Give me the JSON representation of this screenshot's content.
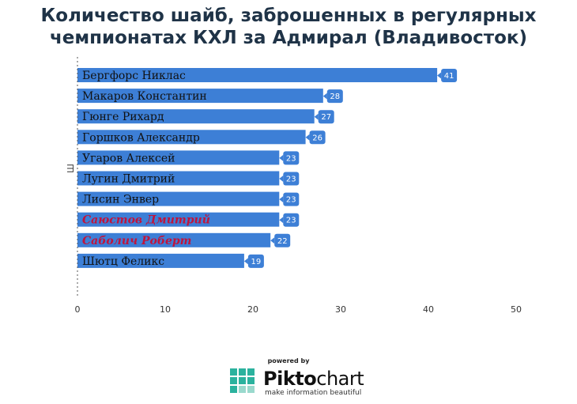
{
  "title_lines": [
    "Количество шайб, заброшенных в регулярных",
    "чемпионатах КХЛ за Адмирал (Владивосток)"
  ],
  "chart_data": {
    "type": "bar",
    "orientation": "horizontal",
    "title": "Количество шайб, заброшенных в регулярных чемпионатах КХЛ за Адмирал (Владивосток)",
    "ylabel": "Ш",
    "xlabel": "",
    "categories": [
      "Бергфорс Никлас",
      "Макаров Константин",
      "Гюнге Рихард",
      "Горшков Александр",
      "Угаров Алексей",
      "Лугин Дмитрий",
      "Лисин Энвер",
      "Саюстов Дмитрий",
      "Саболич Роберт",
      "Шютц Феликс"
    ],
    "values": [
      41,
      28,
      27,
      26,
      23,
      23,
      23,
      23,
      22,
      19
    ],
    "highlighted": [
      false,
      false,
      false,
      false,
      false,
      false,
      false,
      true,
      true,
      false
    ],
    "xlim": [
      0,
      50
    ],
    "xticks": [
      0,
      10,
      20,
      30,
      40,
      50
    ],
    "grid": false,
    "colors": {
      "bar": "#3d7fd6",
      "bar_label": "#111111",
      "highlight_label": "#c0143c",
      "value_bubble": "#3d7fd6"
    }
  },
  "footer": {
    "powered_by": "powered by",
    "brand_bold": "Pikto",
    "brand_rest": "chart",
    "tagline": "make information beautiful",
    "brand_color": "#2bb29e"
  }
}
